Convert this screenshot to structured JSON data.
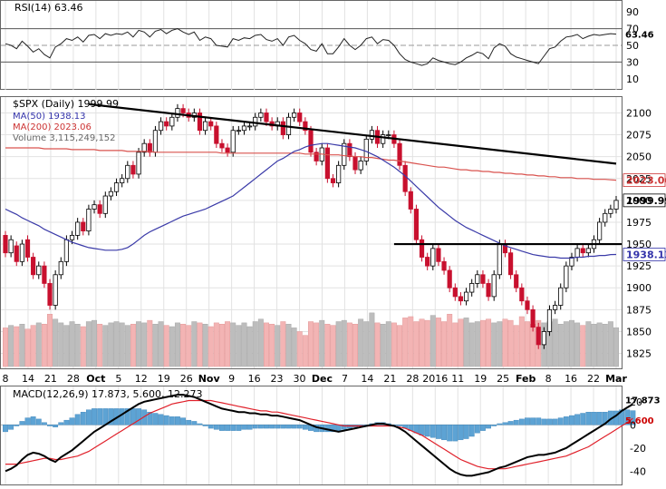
{
  "chart_data": {
    "type": "candlestick",
    "title": "$SPX (Daily) 1999.99",
    "x_ticks": [
      "8",
      "14",
      "21",
      "28",
      "Oct",
      "5",
      "12",
      "19",
      "26",
      "Nov",
      "9",
      "16",
      "23",
      "30",
      "Dec",
      "7",
      "14",
      "21",
      "28",
      "2016",
      "11",
      "19",
      "25",
      "Feb",
      "8",
      "16",
      "22",
      "Mar"
    ],
    "price_ticks": [
      2100,
      2075,
      2050,
      2025,
      2000,
      1975,
      1950,
      1925,
      1900,
      1875,
      1850,
      1825
    ],
    "price_range": [
      1810,
      2115
    ],
    "legend": [
      {
        "label": "$SPX (Daily) 1999.99",
        "color": "#000000"
      },
      {
        "label": "MA(50) 1938.13",
        "color": "#3333aa"
      },
      {
        "label": "MA(200) 2023.06",
        "color": "#cc3333"
      },
      {
        "label": "Volume 3,115,249,152",
        "color": "#888888"
      }
    ],
    "price_series": {
      "open": [
        1960,
        1940,
        1948,
        1930,
        1955,
        1935,
        1915,
        1925,
        1905,
        1880,
        1915,
        1930,
        1955,
        1960,
        1975,
        1965,
        1990,
        1995,
        1985,
        2005,
        2010,
        2020,
        2025,
        2040,
        2030,
        2055,
        2065,
        2055,
        2080,
        2090,
        2085,
        2095,
        2105,
        2100,
        2095,
        2100,
        2080,
        2090,
        2085,
        2065,
        2060,
        2055,
        2080,
        2080,
        2085,
        2085,
        2095,
        2100,
        2090,
        2085,
        2090,
        2075,
        2095,
        2100,
        2090,
        2080,
        2055,
        2045,
        2060,
        2025,
        2020,
        2040,
        2065,
        2050,
        2035,
        2045,
        2070,
        2080,
        2065,
        2075,
        2075,
        2065,
        2040,
        2010,
        1990,
        1955,
        1935,
        1925,
        1945,
        1930,
        1920,
        1900,
        1890,
        1885,
        1895,
        1905,
        1915,
        1905,
        1890,
        1915,
        1950,
        1940,
        1915,
        1900,
        1885,
        1875,
        1855,
        1835,
        1850,
        1875,
        1880,
        1900,
        1925,
        1935,
        1945,
        1940,
        1945,
        1955,
        1975,
        1985,
        1990
      ],
      "close": [
        1940,
        1955,
        1930,
        1950,
        1935,
        1915,
        1925,
        1905,
        1880,
        1915,
        1930,
        1955,
        1960,
        1975,
        1965,
        1990,
        1995,
        1985,
        2005,
        2010,
        2020,
        2025,
        2040,
        2030,
        2055,
        2065,
        2055,
        2080,
        2090,
        2085,
        2095,
        2105,
        2100,
        2095,
        2100,
        2080,
        2090,
        2085,
        2065,
        2060,
        2055,
        2080,
        2080,
        2085,
        2085,
        2095,
        2100,
        2090,
        2085,
        2090,
        2075,
        2095,
        2100,
        2090,
        2080,
        2055,
        2045,
        2060,
        2025,
        2020,
        2040,
        2065,
        2050,
        2035,
        2045,
        2070,
        2080,
        2065,
        2075,
        2075,
        2065,
        2040,
        2010,
        1990,
        1955,
        1935,
        1925,
        1945,
        1930,
        1920,
        1900,
        1890,
        1885,
        1895,
        1905,
        1915,
        1905,
        1890,
        1915,
        1950,
        1940,
        1915,
        1900,
        1885,
        1875,
        1855,
        1835,
        1850,
        1875,
        1880,
        1900,
        1925,
        1935,
        1945,
        1940,
        1945,
        1955,
        1975,
        1985,
        1990,
        1999.99
      ]
    },
    "ma50": [
      1990,
      1987,
      1984,
      1980,
      1977,
      1974,
      1971,
      1967,
      1964,
      1961,
      1958,
      1955,
      1952,
      1950,
      1948,
      1946,
      1945,
      1944,
      1943,
      1943,
      1943,
      1944,
      1946,
      1950,
      1955,
      1960,
      1964,
      1967,
      1970,
      1973,
      1976,
      1979,
      1982,
      1984,
      1986,
      1988,
      1990,
      1993,
      1996,
      1999,
      2002,
      2005,
      2010,
      2015,
      2020,
      2025,
      2030,
      2035,
      2040,
      2045,
      2048,
      2052,
      2056,
      2058,
      2061,
      2063,
      2064,
      2065,
      2065,
      2064,
      2063,
      2062,
      2061,
      2060,
      2058,
      2056,
      2053,
      2050,
      2046,
      2042,
      2038,
      2033,
      2028,
      2022,
      2016,
      2010,
      2004,
      1998,
      1992,
      1987,
      1982,
      1977,
      1973,
      1969,
      1966,
      1963,
      1960,
      1957,
      1954,
      1951,
      1948,
      1946,
      1944,
      1942,
      1940,
      1938,
      1937,
      1936,
      1935,
      1935,
      1934,
      1934,
      1934,
      1935,
      1935,
      1936,
      1936,
      1937,
      1937,
      1938,
      1938.13
    ],
    "ma200": [
      2060,
      2060,
      2060,
      2060,
      2060,
      2060,
      2060,
      2059,
      2059,
      2059,
      2059,
      2059,
      2058,
      2058,
      2058,
      2058,
      2058,
      2057,
      2057,
      2057,
      2057,
      2057,
      2056,
      2056,
      2056,
      2056,
      2056,
      2055,
      2055,
      2055,
      2055,
      2055,
      2055,
      2055,
      2055,
      2055,
      2055,
      2055,
      2055,
      2054,
      2054,
      2054,
      2054,
      2054,
      2054,
      2054,
      2054,
      2054,
      2054,
      2054,
      2054,
      2054,
      2054,
      2054,
      2053,
      2053,
      2053,
      2053,
      2052,
      2052,
      2052,
      2051,
      2051,
      2050,
      2050,
      2049,
      2049,
      2048,
      2047,
      2046,
      2046,
      2045,
      2044,
      2043,
      2042,
      2041,
      2040,
      2039,
      2038,
      2038,
      2037,
      2036,
      2035,
      2035,
      2034,
      2034,
      2033,
      2033,
      2032,
      2032,
      2031,
      2031,
      2030,
      2030,
      2029,
      2029,
      2028,
      2028,
      2027,
      2027,
      2026,
      2026,
      2026,
      2025,
      2025,
      2025,
      2024,
      2024,
      2024,
      2023.5,
      2023.06
    ],
    "volume_billions": [
      3.1,
      3.3,
      3.2,
      3.4,
      3.0,
      3.3,
      3.5,
      3.4,
      4.2,
      3.8,
      3.5,
      3.3,
      3.6,
      3.4,
      3.2,
      3.6,
      3.7,
      3.4,
      3.3,
      3.5,
      3.6,
      3.5,
      3.3,
      3.4,
      3.6,
      3.5,
      3.7,
      3.4,
      3.6,
      3.3,
      3.2,
      3.5,
      3.4,
      3.3,
      3.6,
      3.5,
      3.4,
      3.2,
      3.5,
      3.4,
      3.6,
      3.5,
      3.3,
      3.5,
      3.2,
      3.6,
      3.8,
      3.5,
      3.4,
      3.3,
      3.6,
      3.4,
      3.1,
      2.8,
      2.5,
      3.6,
      3.5,
      3.7,
      3.4,
      3.3,
      3.6,
      3.7,
      3.5,
      3.4,
      3.8,
      3.6,
      4.3,
      3.5,
      3.4,
      3.6,
      3.5,
      3.3,
      3.9,
      4.0,
      3.6,
      3.8,
      3.7,
      4.1,
      3.9,
      3.6,
      4.2,
      3.5,
      3.8,
      3.9,
      3.5,
      3.6,
      3.7,
      3.8,
      3.5,
      3.6,
      3.8,
      3.7,
      3.3,
      4.0,
      3.6,
      3.4,
      3.7,
      3.5,
      3.6,
      3.8,
      3.4,
      3.6,
      3.7,
      3.5,
      3.3,
      3.6,
      3.4,
      3.5,
      3.4,
      3.6,
      3.115
    ],
    "trendline_points": [
      [
        15,
        2110
      ],
      [
        110,
        2042
      ]
    ],
    "support_line": {
      "from_index": 70,
      "value": 1950
    },
    "rsi": {
      "label": "RSI(14) 63.46",
      "ticks": [
        90,
        70,
        50,
        30,
        10
      ],
      "range": [
        0,
        100
      ],
      "levels": [
        70,
        50,
        30
      ],
      "last_value_label": "63.46",
      "values": [
        52,
        50,
        46,
        55,
        49,
        42,
        46,
        39,
        35,
        48,
        52,
        58,
        56,
        60,
        54,
        62,
        63,
        58,
        64,
        62,
        64,
        63,
        66,
        60,
        68,
        66,
        60,
        67,
        69,
        64,
        68,
        70,
        66,
        63,
        66,
        56,
        60,
        58,
        50,
        49,
        48,
        58,
        56,
        59,
        58,
        62,
        63,
        57,
        55,
        58,
        50,
        60,
        62,
        56,
        52,
        45,
        43,
        52,
        40,
        40,
        48,
        58,
        50,
        45,
        50,
        58,
        60,
        52,
        57,
        56,
        50,
        40,
        33,
        30,
        28,
        26,
        28,
        35,
        32,
        30,
        28,
        27,
        30,
        35,
        38,
        42,
        40,
        34,
        47,
        52,
        49,
        40,
        36,
        34,
        32,
        30,
        28,
        37,
        46,
        48,
        55,
        60,
        61,
        63,
        58,
        61,
        63,
        62,
        63,
        64,
        63.46
      ]
    },
    "macd": {
      "label": "MACD(12,26,9) 17.873, 5.600, 12.273",
      "ticks": [
        20,
        0,
        -20,
        -40
      ],
      "range": [
        -50,
        30
      ],
      "last_labels": [
        "17.873",
        "5.600"
      ],
      "macd": [
        -40,
        -38,
        -35,
        -30,
        -26,
        -24,
        -25,
        -27,
        -30,
        -32,
        -28,
        -25,
        -22,
        -18,
        -14,
        -10,
        -6,
        -3,
        0,
        3,
        6,
        9,
        12,
        15,
        18,
        20,
        21,
        22,
        23,
        24,
        25,
        26,
        26,
        25,
        24,
        22,
        20,
        18,
        16,
        14,
        13,
        12,
        11,
        11,
        10,
        10,
        9,
        9,
        8,
        8,
        7,
        6,
        5,
        4,
        2,
        0,
        -2,
        -3,
        -4,
        -5,
        -6,
        -5,
        -4,
        -3,
        -2,
        -1,
        0,
        1,
        1,
        0,
        -1,
        -3,
        -6,
        -10,
        -14,
        -18,
        -22,
        -26,
        -30,
        -34,
        -38,
        -41,
        -43,
        -44,
        -44,
        -43,
        -42,
        -41,
        -39,
        -37,
        -36,
        -34,
        -32,
        -30,
        -28,
        -27,
        -26,
        -26,
        -25,
        -24,
        -22,
        -20,
        -17,
        -14,
        -11,
        -8,
        -5,
        -2,
        1,
        5,
        8,
        12,
        15,
        17.873
      ],
      "signal": [
        -34,
        -34,
        -34,
        -33,
        -32,
        -31,
        -30,
        -29,
        -29,
        -30,
        -30,
        -29,
        -28,
        -27,
        -25,
        -23,
        -20,
        -17,
        -14,
        -11,
        -8,
        -5,
        -2,
        1,
        4,
        7,
        10,
        12,
        14,
        16,
        18,
        19,
        20,
        21,
        21,
        21,
        21,
        21,
        20,
        19,
        18,
        17,
        16,
        15,
        14,
        13,
        12,
        12,
        11,
        11,
        10,
        9,
        8,
        7,
        6,
        5,
        4,
        3,
        2,
        1,
        0,
        -1,
        -1,
        -1,
        -1,
        -1,
        -1,
        -1,
        -1,
        -1,
        -1,
        -2,
        -3,
        -5,
        -7,
        -9,
        -12,
        -15,
        -18,
        -21,
        -24,
        -27,
        -30,
        -32,
        -34,
        -36,
        -37,
        -38,
        -38,
        -38,
        -38,
        -37,
        -36,
        -35,
        -34,
        -33,
        -32,
        -31,
        -30,
        -29,
        -28,
        -27,
        -25,
        -23,
        -21,
        -19,
        -16,
        -13,
        -10,
        -7,
        -4,
        -1,
        2,
        5.6
      ]
    }
  }
}
